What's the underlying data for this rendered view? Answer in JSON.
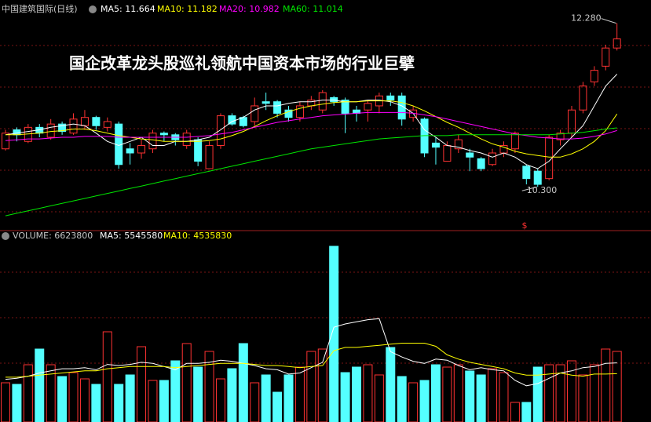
{
  "chart_data": [
    {
      "type": "candlestick",
      "title": "中国建筑国际(日线)",
      "headline": "国企改革龙头股巡礼领航中国资本市场的行业巨擘",
      "signal": "$",
      "ylim": [
        9.78,
        12.39
      ],
      "up_color": "#ff3232",
      "down_color": "#54ffff",
      "open": [
        10.76,
        10.99,
        10.85,
        11.02,
        10.9,
        11.06,
        10.95,
        11.04,
        11.14,
        11.02,
        11.06,
        10.76,
        10.71,
        10.76,
        10.95,
        10.93,
        10.8,
        10.87,
        10.52,
        10.8,
        11.16,
        11.14,
        11.09,
        11.33,
        11.33,
        11.23,
        11.14,
        11.28,
        11.23,
        11.38,
        11.35,
        11.23,
        11.23,
        11.28,
        11.4,
        11.4,
        11.14,
        11.12,
        10.83,
        10.61,
        10.76,
        10.71,
        10.64,
        10.57,
        10.71,
        10.76,
        10.55,
        10.49,
        10.4,
        10.87,
        10.95,
        11.23,
        11.57,
        11.76,
        11.98
      ],
      "high": [
        10.99,
        11.02,
        11.06,
        11.06,
        11.12,
        11.09,
        11.19,
        11.23,
        11.16,
        11.14,
        11.09,
        10.83,
        10.87,
        10.99,
        10.97,
        10.95,
        10.99,
        10.9,
        10.85,
        11.19,
        11.19,
        11.16,
        11.38,
        11.44,
        11.35,
        11.28,
        11.33,
        11.4,
        11.47,
        11.4,
        11.38,
        11.28,
        11.35,
        11.44,
        11.44,
        11.44,
        11.28,
        11.14,
        10.9,
        10.85,
        10.93,
        10.76,
        10.66,
        10.76,
        10.85,
        10.97,
        10.57,
        10.52,
        10.93,
        10.99,
        11.28,
        11.57,
        11.76,
        12.02,
        12.28
      ],
      "low": [
        10.74,
        10.85,
        10.83,
        10.9,
        10.87,
        10.93,
        10.93,
        10.99,
        10.99,
        10.97,
        10.52,
        10.57,
        10.64,
        10.71,
        10.85,
        10.8,
        10.76,
        10.55,
        10.52,
        10.76,
        11.04,
        11.02,
        11.04,
        11.23,
        11.14,
        11.09,
        11.09,
        11.23,
        11.19,
        11.28,
        10.95,
        11.09,
        11.09,
        11.19,
        11.28,
        11.04,
        11.09,
        10.66,
        10.57,
        10.61,
        10.71,
        10.49,
        10.49,
        10.55,
        10.66,
        10.71,
        10.33,
        10.3,
        10.38,
        10.8,
        10.9,
        11.19,
        11.52,
        11.71,
        11.95
      ],
      "close": [
        10.95,
        10.93,
        11.02,
        10.95,
        11.06,
        10.97,
        11.12,
        11.14,
        11.04,
        11.09,
        10.57,
        10.71,
        10.8,
        10.95,
        10.93,
        10.87,
        10.95,
        10.61,
        10.8,
        11.16,
        11.06,
        11.04,
        11.28,
        11.31,
        11.19,
        11.14,
        11.28,
        11.35,
        11.44,
        11.33,
        11.19,
        11.19,
        11.31,
        11.4,
        11.35,
        11.12,
        11.23,
        10.71,
        10.78,
        10.8,
        10.87,
        10.66,
        10.52,
        10.71,
        10.8,
        10.95,
        10.4,
        10.33,
        10.9,
        10.95,
        11.23,
        11.52,
        11.71,
        11.98,
        12.09
      ],
      "series": [
        {
          "name": "MA5",
          "legend_label": "MA5: 11.664",
          "color": "#ffffff",
          "values": [
            10.93,
            10.95,
            10.97,
            10.99,
            11.02,
            11.04,
            11.06,
            11.04,
            10.95,
            10.85,
            10.8,
            10.85,
            10.9,
            10.8,
            10.8,
            10.85,
            10.85,
            10.87,
            10.9,
            10.99,
            11.09,
            11.14,
            11.23,
            11.28,
            11.28,
            11.31,
            11.33,
            11.33,
            11.35,
            11.35,
            11.33,
            11.33,
            11.35,
            11.35,
            11.33,
            11.28,
            11.19,
            10.99,
            10.9,
            10.8,
            10.78,
            10.74,
            10.71,
            10.66,
            10.71,
            10.66,
            10.57,
            10.52,
            10.61,
            10.76,
            10.9,
            11.04,
            11.28,
            11.52,
            11.664
          ]
        },
        {
          "name": "MA10",
          "legend_label": "MA10: 11.182",
          "color": "#ffff00",
          "values": [
            10.93,
            10.93,
            10.94,
            10.95,
            10.97,
            10.98,
            11.0,
            11.0,
            10.98,
            10.95,
            10.92,
            10.9,
            10.88,
            10.87,
            10.85,
            10.85,
            10.85,
            10.85,
            10.86,
            10.88,
            10.92,
            10.97,
            11.03,
            11.1,
            11.16,
            11.21,
            11.25,
            11.28,
            11.3,
            11.32,
            11.33,
            11.33,
            11.34,
            11.34,
            11.34,
            11.32,
            11.28,
            11.22,
            11.15,
            11.08,
            11.02,
            10.95,
            10.88,
            10.82,
            10.78,
            10.73,
            10.7,
            10.68,
            10.66,
            10.66,
            10.7,
            10.76,
            10.85,
            10.98,
            11.182
          ]
        },
        {
          "name": "MA20",
          "legend_label": "MA20: 10.982",
          "color": "#ff00ff",
          "values": [
            10.86,
            10.87,
            10.88,
            10.88,
            10.89,
            10.9,
            10.9,
            10.91,
            10.91,
            10.91,
            10.9,
            10.9,
            10.9,
            10.9,
            10.9,
            10.9,
            10.9,
            10.91,
            10.92,
            10.94,
            10.96,
            10.99,
            11.02,
            11.05,
            11.08,
            11.1,
            11.12,
            11.14,
            11.16,
            11.17,
            11.18,
            11.19,
            11.2,
            11.2,
            11.2,
            11.2,
            11.19,
            11.17,
            11.15,
            11.12,
            11.09,
            11.06,
            11.03,
            11.0,
            10.97,
            10.94,
            10.92,
            10.9,
            10.89,
            10.88,
            10.88,
            10.89,
            10.91,
            10.94,
            10.982
          ]
        },
        {
          "name": "MA60",
          "legend_label": "MA60: 11.014",
          "color": "#00e600",
          "values": [
            9.95,
            9.98,
            10.01,
            10.04,
            10.07,
            10.1,
            10.13,
            10.16,
            10.19,
            10.22,
            10.25,
            10.28,
            10.31,
            10.34,
            10.37,
            10.4,
            10.43,
            10.46,
            10.49,
            10.52,
            10.55,
            10.58,
            10.61,
            10.64,
            10.67,
            10.7,
            10.73,
            10.76,
            10.78,
            10.8,
            10.82,
            10.84,
            10.86,
            10.88,
            10.89,
            10.9,
            10.91,
            10.92,
            10.92,
            10.92,
            10.93,
            10.93,
            10.93,
            10.93,
            10.93,
            10.93,
            10.93,
            10.93,
            10.93,
            10.94,
            10.95,
            10.96,
            10.98,
            11.0,
            11.014
          ]
        }
      ],
      "annotations": [
        {
          "value": 12.28,
          "label": "12.280"
        },
        {
          "value": 10.3,
          "label": "10.300"
        }
      ]
    },
    {
      "type": "bar",
      "ylim": [
        0,
        16780000
      ],
      "series": [
        {
          "name": "VOLUME",
          "legend_label": "VOLUME: 6623800",
          "color": "#c8c8c8",
          "values": [
            3680000,
            3532800,
            5372800,
            6844800,
            5372800,
            4268800,
            4636800,
            4048000,
            3532800,
            8464000,
            3532800,
            4416000,
            7065600,
            3900800,
            3900800,
            5740800,
            7360000,
            5152000,
            6624000,
            4048000,
            5004800,
            7360000,
            3680000,
            4416000,
            2796800,
            4416000,
            5152000,
            6624000,
            6844800,
            16486400,
            4636800,
            5152000,
            5372800,
            4416000,
            6992000,
            4268800,
            3680000,
            3900800,
            5372800,
            5152000,
            5372800,
            4784000,
            4416000,
            5004800,
            4636800,
            1840000,
            1840000,
            5152000,
            5372800,
            5372800,
            5740800,
            4416000,
            5372800,
            6844800,
            6623800
          ]
        },
        {
          "name": "MA5",
          "legend_label": "MA5: 5545580",
          "color": "#ffffff",
          "values": [
            4000000,
            4100000,
            4300000,
            4600000,
            4800000,
            5000000,
            5000000,
            5100000,
            4900000,
            5400000,
            5300000,
            5400000,
            5600000,
            5500000,
            5200000,
            4900000,
            5500000,
            5500000,
            5600000,
            5800000,
            5700000,
            5500000,
            5300000,
            5000000,
            4900000,
            4500000,
            4600000,
            5100000,
            5600000,
            8900000,
            9200000,
            9400000,
            9600000,
            9700000,
            6600000,
            6100000,
            5700000,
            5500000,
            5900000,
            5800000,
            5300000,
            4900000,
            5100000,
            4900000,
            4800000,
            3900000,
            3400000,
            3600000,
            4100000,
            4600000,
            4800000,
            5100000,
            5200000,
            5500000,
            5545580
          ]
        },
        {
          "name": "MA10",
          "legend_label": "MA10: 4535830",
          "color": "#ffff00",
          "values": [
            4200000,
            4200000,
            4300000,
            4400000,
            4500000,
            4600000,
            4700000,
            4800000,
            4800000,
            5000000,
            5100000,
            5200000,
            5200000,
            5200000,
            5200000,
            5100000,
            5200000,
            5300000,
            5400000,
            5500000,
            5500000,
            5500000,
            5400000,
            5300000,
            5300000,
            5200000,
            5100000,
            5200000,
            5300000,
            6700000,
            7000000,
            7000000,
            7100000,
            7200000,
            7300000,
            7400000,
            7400000,
            7400000,
            7100000,
            6300000,
            5900000,
            5600000,
            5400000,
            5200000,
            5000000,
            4600000,
            4400000,
            4400000,
            4500000,
            4600000,
            4400000,
            4300000,
            4500000,
            4500000,
            4535830
          ]
        }
      ]
    }
  ]
}
